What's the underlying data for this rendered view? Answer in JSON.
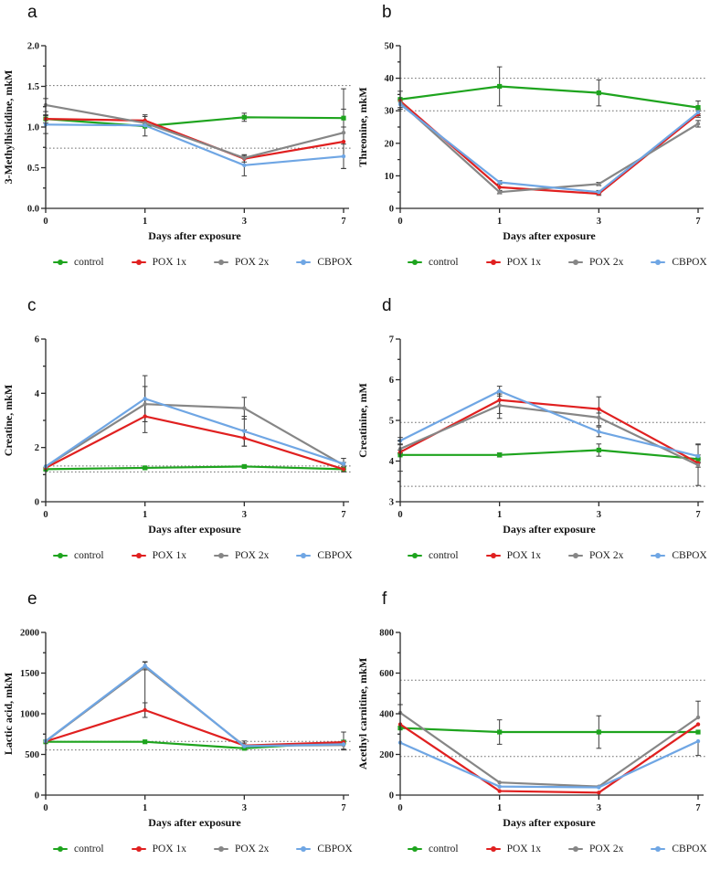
{
  "xlabel": "Days after exposure",
  "x_tick_labels": [
    "0",
    "1",
    "3",
    "7"
  ],
  "series": [
    {
      "name": "control",
      "label": "control",
      "color": "#1ea41e"
    },
    {
      "name": "pox-1x",
      "label": "POX 1x",
      "color": "#e02020"
    },
    {
      "name": "pox-2x",
      "label": "POX 2x",
      "color": "#868686"
    },
    {
      "name": "cbpox",
      "label": "CBPOX",
      "color": "#6fa6e4"
    }
  ],
  "chart_data": [
    {
      "type": "line",
      "letter": "a",
      "ylabel": "3-Methylhistidine, mkM",
      "xlabel": "Days after exposure",
      "x": [
        0,
        1,
        3,
        7
      ],
      "ylim": [
        0,
        2
      ],
      "yticks": [
        0,
        0.5,
        1,
        1.5,
        2
      ],
      "ytick_labels": [
        "0.0",
        "0.5",
        "1.0",
        "1.5",
        "2.0"
      ],
      "ref_lines": [
        1.51,
        0.74
      ],
      "grid": false,
      "legend_position": "bottom",
      "series": [
        {
          "name": "control",
          "values": [
            1.1,
            1.01,
            1.12,
            1.11
          ],
          "err": [
            0.05,
            0.12,
            0.05,
            0.11
          ]
        },
        {
          "name": "POX 1x",
          "values": [
            1.1,
            1.08,
            0.61,
            0.82
          ],
          "err": [
            0,
            0.07,
            0.04,
            0
          ]
        },
        {
          "name": "POX 2x",
          "values": [
            1.27,
            1.05,
            0.62,
            0.93
          ],
          "err": [
            0.08,
            0,
            0,
            [
              0.44,
              0.54
            ]
          ]
        },
        {
          "name": "CBPOX",
          "values": [
            1.03,
            1.02,
            0.53,
            0.64
          ],
          "err": [
            0.11,
            0,
            0.13,
            0.15
          ]
        }
      ]
    },
    {
      "type": "line",
      "letter": "b",
      "ylabel": "Threonine, mkM",
      "xlabel": "Days after exposure",
      "x": [
        0,
        1,
        3,
        7
      ],
      "ylim": [
        0,
        50
      ],
      "yticks": [
        0,
        10,
        20,
        30,
        40,
        50
      ],
      "ytick_labels": [
        "0",
        "10",
        "20",
        "30",
        "40",
        "50"
      ],
      "ref_lines": [
        40,
        30
      ],
      "grid": false,
      "legend_position": "bottom",
      "series": [
        {
          "name": "control",
          "values": [
            33.5,
            37.5,
            35.5,
            31
          ],
          "err": [
            2.5,
            6,
            4,
            2
          ]
        },
        {
          "name": "POX 1x",
          "values": [
            33,
            6.5,
            4.5,
            29
          ],
          "err": [
            0,
            1,
            0.5,
            1
          ]
        },
        {
          "name": "POX 2x",
          "values": [
            32.5,
            5,
            7.5,
            26
          ],
          "err": [
            0,
            0.5,
            0.5,
            1
          ]
        },
        {
          "name": "CBPOX",
          "values": [
            32,
            8,
            5,
            29.5
          ],
          "err": [
            1.5,
            0.5,
            0.5,
            1
          ]
        }
      ]
    },
    {
      "type": "line",
      "letter": "c",
      "ylabel": "Creatine, mkM",
      "xlabel": "Days after exposure",
      "x": [
        0,
        1,
        3,
        7
      ],
      "ylim": [
        0,
        6
      ],
      "yticks": [
        0,
        2,
        4,
        6
      ],
      "ytick_labels": [
        "0",
        "2",
        "4",
        "6"
      ],
      "ref_lines": [
        1.32,
        1.1
      ],
      "grid": false,
      "legend_position": "bottom",
      "series": [
        {
          "name": "control",
          "values": [
            1.2,
            1.25,
            1.3,
            1.2
          ],
          "err": [
            0,
            0.05,
            0.05,
            0
          ]
        },
        {
          "name": "POX 1x",
          "values": [
            1.25,
            3.15,
            2.35,
            1.2
          ],
          "err": [
            0,
            0.6,
            0.3,
            0.1
          ]
        },
        {
          "name": "POX 2x",
          "values": [
            1.3,
            3.6,
            3.45,
            1.35
          ],
          "err": [
            0,
            0.65,
            0.4,
            0.1
          ]
        },
        {
          "name": "CBPOX",
          "values": [
            1.3,
            3.8,
            2.6,
            1.4
          ],
          "err": [
            0,
            0.85,
            0.55,
            0.2
          ]
        }
      ]
    },
    {
      "type": "line",
      "letter": "d",
      "ylabel": "Creatinine, mM",
      "xlabel": "Days after exposure",
      "x": [
        0,
        1,
        3,
        7
      ],
      "ylim": [
        3,
        7
      ],
      "yticks": [
        3,
        4,
        5,
        6,
        7
      ],
      "ytick_labels": [
        "3",
        "4",
        "5",
        "6",
        "7"
      ],
      "ref_lines": [
        4.95,
        3.38
      ],
      "grid": false,
      "legend_position": "bottom",
      "series": [
        {
          "name": "control",
          "values": [
            4.15,
            4.15,
            4.27,
            4.05
          ],
          "err": [
            [
              0.4,
              0.05
            ],
            0.05,
            0.15,
            0.1
          ]
        },
        {
          "name": "POX 1x",
          "values": [
            4.22,
            5.5,
            5.28,
            3.95
          ],
          "err": [
            0.05,
            [
              0.45,
              0.15
            ],
            [
              0.1,
              0.3
            ],
            0.1
          ]
        },
        {
          "name": "POX 2x",
          "values": [
            4.3,
            5.37,
            5.07,
            3.9
          ],
          "err": [
            0.1,
            [
              0.2,
              0.35
            ],
            0.2,
            0.5
          ]
        },
        {
          "name": "CBPOX",
          "values": [
            4.5,
            5.72,
            4.72,
            4.12
          ],
          "err": [
            0.08,
            0.12,
            0.12,
            [
              0.15,
              0.3
            ]
          ]
        }
      ]
    },
    {
      "type": "line",
      "letter": "e",
      "ylabel": "Lactic acid, mkM",
      "xlabel": "Days after exposure",
      "x": [
        0,
        1,
        3,
        7
      ],
      "ylim": [
        0,
        2000
      ],
      "yticks": [
        0,
        500,
        1000,
        1500,
        2000
      ],
      "ytick_labels": [
        "0",
        "500",
        "1000",
        "1500",
        "2000"
      ],
      "ref_lines": [
        660,
        555
      ],
      "grid": false,
      "legend_position": "bottom",
      "series": [
        {
          "name": "control",
          "values": [
            655,
            655,
            575,
            650
          ],
          "err": [
            0,
            0,
            0,
            0
          ]
        },
        {
          "name": "POX 1x",
          "values": [
            660,
            1045,
            610,
            650
          ],
          "err": [
            0,
            90,
            0,
            0
          ]
        },
        {
          "name": "POX 2x",
          "values": [
            660,
            1575,
            605,
            615
          ],
          "err": [
            0,
            [
              620,
              60
            ],
            [
              0,
              60
            ],
            60
          ]
        },
        {
          "name": "CBPOX",
          "values": [
            665,
            1590,
            600,
            625
          ],
          "err": [
            0,
            50,
            40,
            [
              60,
              150
            ]
          ]
        }
      ]
    },
    {
      "type": "line",
      "letter": "f",
      "ylabel": "Acethyl carnitine, mkM",
      "xlabel": "Days after exposure",
      "x": [
        0,
        1,
        3,
        7
      ],
      "ylim": [
        0,
        800
      ],
      "yticks": [
        0,
        200,
        400,
        600,
        800
      ],
      "ytick_labels": [
        "0",
        "200",
        "400",
        "600",
        "800"
      ],
      "ref_lines": [
        565,
        190
      ],
      "grid": false,
      "legend_position": "bottom",
      "series": [
        {
          "name": "control",
          "values": [
            330,
            310,
            310,
            310
          ],
          "err": [
            0,
            60,
            80,
            0
          ]
        },
        {
          "name": "POX 1x",
          "values": [
            348,
            20,
            12,
            348
          ],
          "err": [
            0,
            0,
            0,
            0
          ]
        },
        {
          "name": "POX 2x",
          "values": [
            405,
            62,
            42,
            382
          ],
          "err": [
            [
              0,
              40
            ],
            0,
            0,
            [
              0,
              80
            ]
          ]
        },
        {
          "name": "CBPOX",
          "values": [
            258,
            42,
            38,
            265
          ],
          "err": [
            0,
            0,
            0,
            [
              70,
              0
            ]
          ]
        }
      ]
    }
  ]
}
